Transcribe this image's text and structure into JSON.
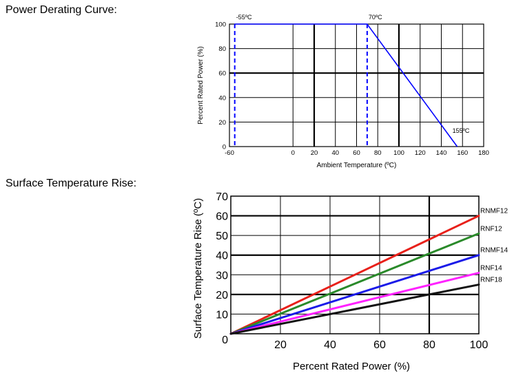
{
  "sections": {
    "derating_title": "Power Derating Curve:",
    "rise_title": "Surface Temperature Rise:"
  },
  "chart_data": [
    {
      "type": "line",
      "title": "Power Derating Curve:",
      "xlabel": "Ambient Temperature (ºC)",
      "ylabel": "Percent Rated Power (%)",
      "xlim": [
        -60,
        180
      ],
      "ylim": [
        0,
        100
      ],
      "x_ticks": [
        -60,
        0,
        20,
        40,
        60,
        80,
        100,
        120,
        140,
        160,
        180
      ],
      "y_ticks": [
        0,
        20,
        40,
        60,
        80,
        100
      ],
      "series": [
        {
          "color": "#0000ff",
          "points": [
            [
              -55,
              100
            ],
            [
              70,
              100
            ],
            [
              155,
              0
            ]
          ]
        }
      ],
      "markers": [
        {
          "x": -55,
          "label": "-55ºC",
          "color": "#0000ff",
          "style": "dashed"
        },
        {
          "x": 70,
          "label": "70ºC",
          "color": "#0000ff",
          "style": "dashed"
        }
      ],
      "annotations": [
        {
          "text": "155ºC",
          "x": 155,
          "y": 0
        }
      ],
      "grid": true
    },
    {
      "type": "line",
      "title": "Surface Temperature Rise:",
      "xlabel": "Percent Rated Power (%)",
      "ylabel": "Surface Temperature Rise (ºC)",
      "xlim": [
        0,
        100
      ],
      "ylim": [
        0,
        70
      ],
      "x_ticks": [
        0,
        20,
        40,
        60,
        80,
        100
      ],
      "y_ticks": [
        0,
        10,
        20,
        30,
        40,
        50,
        60,
        70
      ],
      "series": [
        {
          "name": "RNMF12",
          "color": "#e8201a",
          "x": [
            0,
            100
          ],
          "y": [
            0,
            60
          ]
        },
        {
          "name": "RNF12",
          "color": "#2a8a2a",
          "x": [
            0,
            100
          ],
          "y": [
            0,
            51
          ]
        },
        {
          "name": "RNMF14",
          "color": "#1a1ae8",
          "x": [
            0,
            100
          ],
          "y": [
            0,
            40
          ]
        },
        {
          "name": "RNF14",
          "color": "#ff22ff",
          "x": [
            0,
            100
          ],
          "y": [
            0,
            31
          ]
        },
        {
          "name": "RNF18",
          "color": "#111111",
          "x": [
            0,
            100
          ],
          "y": [
            0,
            25
          ]
        }
      ],
      "grid": true
    }
  ]
}
